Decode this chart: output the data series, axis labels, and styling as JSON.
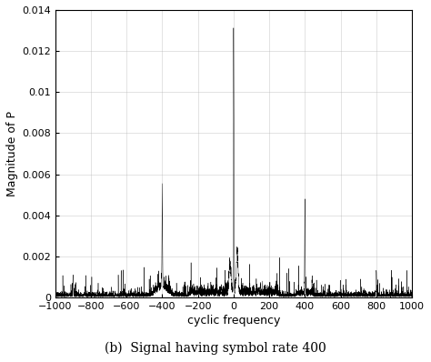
{
  "title": "(b)  Signal having symbol rate 400",
  "xlabel": "cyclic frequency",
  "ylabel": "Magnitude of P",
  "xlim": [
    -1000,
    1000
  ],
  "ylim": [
    0,
    0.014
  ],
  "yticks": [
    0,
    0.002,
    0.004,
    0.006,
    0.008,
    0.01,
    0.012,
    0.014
  ],
  "xticks": [
    -1000,
    -800,
    -600,
    -400,
    -200,
    0,
    200,
    400,
    600,
    800,
    1000
  ],
  "noise_seed": 42,
  "noise_floor": 0.00025,
  "noise_std": 0.00018,
  "symbol_rate": 400,
  "peak_at_zero": 0.013,
  "peak_at_400": 0.0046,
  "peak_at_neg400": 0.0046,
  "peak_at_800": 0.0012,
  "peak_at_neg900": 0.001,
  "background_color": "#ffffff",
  "line_color": "#000000",
  "grid_color": "#b0b0b0"
}
